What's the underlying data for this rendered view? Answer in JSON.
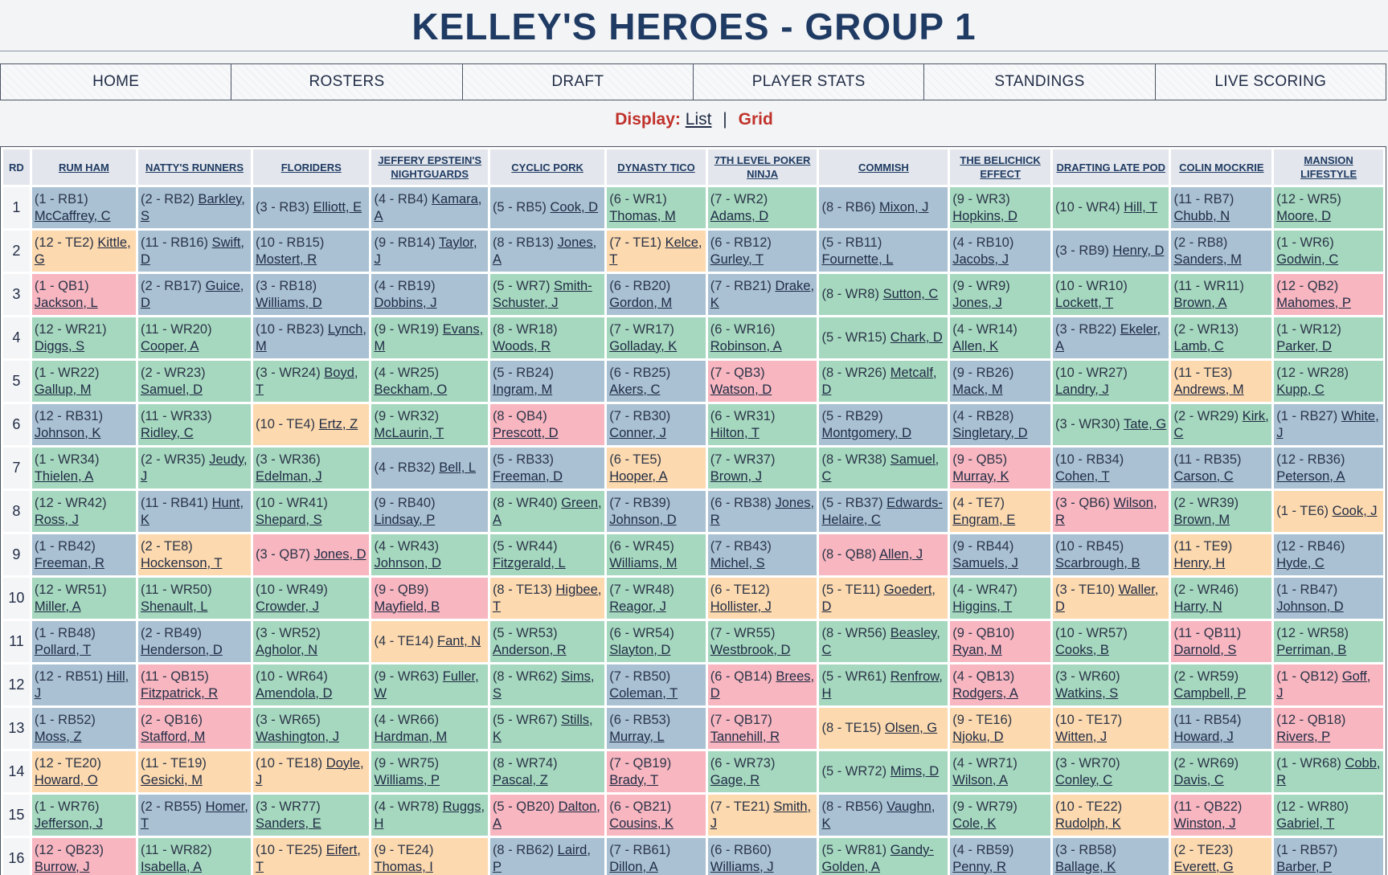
{
  "site": {
    "title": "KELLEY'S HEROES - GROUP 1"
  },
  "nav": [
    "HOME",
    "ROSTERS",
    "DRAFT",
    "PLAYER STATS",
    "STANDINGS",
    "LIVE SCORING"
  ],
  "display": {
    "label": "Display:",
    "list": "List",
    "separator": "|",
    "grid": "Grid"
  },
  "colors": {
    "RB": "#a9c1d3",
    "WR": "#a6d8bf",
    "TE": "#fcd9ae",
    "QB": "#f7b6c0"
  },
  "grid": {
    "rd_header": "RD",
    "teams": [
      "RUM HAM",
      "NATTY'S RUNNERS",
      "FLORIDERS",
      "JEFFERY EPSTEIN'S NIGHTGUARDS",
      "CYCLIC PORK",
      "DYNASTY TICO",
      "7TH LEVEL POKER NINJA",
      "COMMISH",
      "THE BELICHICK EFFECT",
      "DRAFTING LATE POD",
      "COLIN MOCKRIE",
      "MANSION LIFESTYLE"
    ],
    "rows": [
      {
        "rd": "1",
        "picks": [
          {
            "pick": "(1 - RB1)",
            "player": "McCaffrey, C"
          },
          {
            "pick": "(2 - RB2)",
            "player": "Barkley, S"
          },
          {
            "pick": "(3 - RB3)",
            "player": "Elliott, E"
          },
          {
            "pick": "(4 - RB4)",
            "player": "Kamara, A"
          },
          {
            "pick": "(5 - RB5)",
            "player": "Cook, D"
          },
          {
            "pick": "(6 - WR1)",
            "player": "Thomas, M"
          },
          {
            "pick": "(7 - WR2)",
            "player": "Adams, D"
          },
          {
            "pick": "(8 - RB6)",
            "player": "Mixon, J"
          },
          {
            "pick": "(9 - WR3)",
            "player": "Hopkins, D"
          },
          {
            "pick": "(10 - WR4)",
            "player": "Hill, T"
          },
          {
            "pick": "(11 - RB7)",
            "player": "Chubb, N"
          },
          {
            "pick": "(12 - WR5)",
            "player": "Moore, D"
          }
        ]
      },
      {
        "rd": "2",
        "picks": [
          {
            "pick": "(12 - TE2)",
            "player": "Kittle, G"
          },
          {
            "pick": "(11 - RB16)",
            "player": "Swift, D"
          },
          {
            "pick": "(10 - RB15)",
            "player": "Mostert, R"
          },
          {
            "pick": "(9 - RB14)",
            "player": "Taylor, J"
          },
          {
            "pick": "(8 - RB13)",
            "player": "Jones, A"
          },
          {
            "pick": "(7 - TE1)",
            "player": "Kelce, T"
          },
          {
            "pick": "(6 - RB12)",
            "player": "Gurley, T"
          },
          {
            "pick": "(5 - RB11)",
            "player": "Fournette, L"
          },
          {
            "pick": "(4 - RB10)",
            "player": "Jacobs, J"
          },
          {
            "pick": "(3 - RB9)",
            "player": "Henry, D"
          },
          {
            "pick": "(2 - RB8)",
            "player": "Sanders, M"
          },
          {
            "pick": "(1 - WR6)",
            "player": "Godwin, C"
          }
        ]
      },
      {
        "rd": "3",
        "picks": [
          {
            "pick": "(1 - QB1)",
            "player": "Jackson, L"
          },
          {
            "pick": "(2 - RB17)",
            "player": "Guice, D"
          },
          {
            "pick": "(3 - RB18)",
            "player": "Williams, D"
          },
          {
            "pick": "(4 - RB19)",
            "player": "Dobbins, J"
          },
          {
            "pick": "(5 - WR7)",
            "player": "Smith-Schuster, J"
          },
          {
            "pick": "(6 - RB20)",
            "player": "Gordon, M"
          },
          {
            "pick": "(7 - RB21)",
            "player": "Drake, K"
          },
          {
            "pick": "(8 - WR8)",
            "player": "Sutton, C"
          },
          {
            "pick": "(9 - WR9)",
            "player": "Jones, J"
          },
          {
            "pick": "(10 - WR10)",
            "player": "Lockett, T"
          },
          {
            "pick": "(11 - WR11)",
            "player": "Brown, A"
          },
          {
            "pick": "(12 - QB2)",
            "player": "Mahomes, P"
          }
        ]
      },
      {
        "rd": "4",
        "picks": [
          {
            "pick": "(12 - WR21)",
            "player": "Diggs, S"
          },
          {
            "pick": "(11 - WR20)",
            "player": "Cooper, A"
          },
          {
            "pick": "(10 - RB23)",
            "player": "Lynch, M"
          },
          {
            "pick": "(9 - WR19)",
            "player": "Evans, M"
          },
          {
            "pick": "(8 - WR18)",
            "player": "Woods, R"
          },
          {
            "pick": "(7 - WR17)",
            "player": "Golladay, K"
          },
          {
            "pick": "(6 - WR16)",
            "player": "Robinson, A"
          },
          {
            "pick": "(5 - WR15)",
            "player": "Chark, D"
          },
          {
            "pick": "(4 - WR14)",
            "player": "Allen, K"
          },
          {
            "pick": "(3 - RB22)",
            "player": "Ekeler, A"
          },
          {
            "pick": "(2 - WR13)",
            "player": "Lamb, C"
          },
          {
            "pick": "(1 - WR12)",
            "player": "Parker, D"
          }
        ]
      },
      {
        "rd": "5",
        "picks": [
          {
            "pick": "(1 - WR22)",
            "player": "Gallup, M"
          },
          {
            "pick": "(2 - WR23)",
            "player": "Samuel, D"
          },
          {
            "pick": "(3 - WR24)",
            "player": "Boyd, T"
          },
          {
            "pick": "(4 - WR25)",
            "player": "Beckham, O"
          },
          {
            "pick": "(5 - RB24)",
            "player": "Ingram, M"
          },
          {
            "pick": "(6 - RB25)",
            "player": "Akers, C"
          },
          {
            "pick": "(7 - QB3)",
            "player": "Watson, D"
          },
          {
            "pick": "(8 - WR26)",
            "player": "Metcalf, D"
          },
          {
            "pick": "(9 - RB26)",
            "player": "Mack, M"
          },
          {
            "pick": "(10 - WR27)",
            "player": "Landry, J"
          },
          {
            "pick": "(11 - TE3)",
            "player": "Andrews, M"
          },
          {
            "pick": "(12 - WR28)",
            "player": "Kupp, C"
          }
        ]
      },
      {
        "rd": "6",
        "picks": [
          {
            "pick": "(12 - RB31)",
            "player": "Johnson, K"
          },
          {
            "pick": "(11 - WR33)",
            "player": "Ridley, C"
          },
          {
            "pick": "(10 - TE4)",
            "player": "Ertz, Z"
          },
          {
            "pick": "(9 - WR32)",
            "player": "McLaurin, T"
          },
          {
            "pick": "(8 - QB4)",
            "player": "Prescott, D"
          },
          {
            "pick": "(7 - RB30)",
            "player": "Conner, J"
          },
          {
            "pick": "(6 - WR31)",
            "player": "Hilton, T"
          },
          {
            "pick": "(5 - RB29)",
            "player": "Montgomery, D"
          },
          {
            "pick": "(4 - RB28)",
            "player": "Singletary, D"
          },
          {
            "pick": "(3 - WR30)",
            "player": "Tate, G"
          },
          {
            "pick": "(2 - WR29)",
            "player": "Kirk, C"
          },
          {
            "pick": "(1 - RB27)",
            "player": "White, J"
          }
        ]
      },
      {
        "rd": "7",
        "picks": [
          {
            "pick": "(1 - WR34)",
            "player": "Thielen, A"
          },
          {
            "pick": "(2 - WR35)",
            "player": "Jeudy, J"
          },
          {
            "pick": "(3 - WR36)",
            "player": "Edelman, J"
          },
          {
            "pick": "(4 - RB32)",
            "player": "Bell, L"
          },
          {
            "pick": "(5 - RB33)",
            "player": "Freeman, D"
          },
          {
            "pick": "(6 - TE5)",
            "player": "Hooper, A"
          },
          {
            "pick": "(7 - WR37)",
            "player": "Brown, J"
          },
          {
            "pick": "(8 - WR38)",
            "player": "Samuel, C"
          },
          {
            "pick": "(9 - QB5)",
            "player": "Murray, K"
          },
          {
            "pick": "(10 - RB34)",
            "player": "Cohen, T"
          },
          {
            "pick": "(11 - RB35)",
            "player": "Carson, C"
          },
          {
            "pick": "(12 - RB36)",
            "player": "Peterson, A"
          }
        ]
      },
      {
        "rd": "8",
        "picks": [
          {
            "pick": "(12 - WR42)",
            "player": "Ross, J"
          },
          {
            "pick": "(11 - RB41)",
            "player": "Hunt, K"
          },
          {
            "pick": "(10 - WR41)",
            "player": "Shepard, S"
          },
          {
            "pick": "(9 - RB40)",
            "player": "Lindsay, P"
          },
          {
            "pick": "(8 - WR40)",
            "player": "Green, A"
          },
          {
            "pick": "(7 - RB39)",
            "player": "Johnson, D"
          },
          {
            "pick": "(6 - RB38)",
            "player": "Jones, R"
          },
          {
            "pick": "(5 - RB37)",
            "player": "Edwards-Helaire, C"
          },
          {
            "pick": "(4 - TE7)",
            "player": "Engram, E"
          },
          {
            "pick": "(3 - QB6)",
            "player": "Wilson, R"
          },
          {
            "pick": "(2 - WR39)",
            "player": "Brown, M"
          },
          {
            "pick": "(1 - TE6)",
            "player": "Cook, J"
          }
        ]
      },
      {
        "rd": "9",
        "picks": [
          {
            "pick": "(1 - RB42)",
            "player": "Freeman, R"
          },
          {
            "pick": "(2 - TE8)",
            "player": "Hockenson, T"
          },
          {
            "pick": "(3 - QB7)",
            "player": "Jones, D"
          },
          {
            "pick": "(4 - WR43)",
            "player": "Johnson, D"
          },
          {
            "pick": "(5 - WR44)",
            "player": "Fitzgerald, L"
          },
          {
            "pick": "(6 - WR45)",
            "player": "Williams, M"
          },
          {
            "pick": "(7 - RB43)",
            "player": "Michel, S"
          },
          {
            "pick": "(8 - QB8)",
            "player": "Allen, J"
          },
          {
            "pick": "(9 - RB44)",
            "player": "Samuels, J"
          },
          {
            "pick": "(10 - RB45)",
            "player": "Scarbrough, B"
          },
          {
            "pick": "(11 - TE9)",
            "player": "Henry, H"
          },
          {
            "pick": "(12 - RB46)",
            "player": "Hyde, C"
          }
        ]
      },
      {
        "rd": "10",
        "picks": [
          {
            "pick": "(12 - WR51)",
            "player": "Miller, A"
          },
          {
            "pick": "(11 - WR50)",
            "player": "Shenault, L"
          },
          {
            "pick": "(10 - WR49)",
            "player": "Crowder, J"
          },
          {
            "pick": "(9 - QB9)",
            "player": "Mayfield, B"
          },
          {
            "pick": "(8 - TE13)",
            "player": "Higbee, T"
          },
          {
            "pick": "(7 - WR48)",
            "player": "Reagor, J"
          },
          {
            "pick": "(6 - TE12)",
            "player": "Hollister, J"
          },
          {
            "pick": "(5 - TE11)",
            "player": "Goedert, D"
          },
          {
            "pick": "(4 - WR47)",
            "player": "Higgins, T"
          },
          {
            "pick": "(3 - TE10)",
            "player": "Waller, D"
          },
          {
            "pick": "(2 - WR46)",
            "player": "Harry, N"
          },
          {
            "pick": "(1 - RB47)",
            "player": "Johnson, D"
          }
        ]
      },
      {
        "rd": "11",
        "picks": [
          {
            "pick": "(1 - RB48)",
            "player": "Pollard, T"
          },
          {
            "pick": "(2 - RB49)",
            "player": "Henderson, D"
          },
          {
            "pick": "(3 - WR52)",
            "player": "Agholor, N"
          },
          {
            "pick": "(4 - TE14)",
            "player": "Fant, N"
          },
          {
            "pick": "(5 - WR53)",
            "player": "Anderson, R"
          },
          {
            "pick": "(6 - WR54)",
            "player": "Slayton, D"
          },
          {
            "pick": "(7 - WR55)",
            "player": "Westbrook, D"
          },
          {
            "pick": "(8 - WR56)",
            "player": "Beasley, C"
          },
          {
            "pick": "(9 - QB10)",
            "player": "Ryan, M"
          },
          {
            "pick": "(10 - WR57)",
            "player": "Cooks, B"
          },
          {
            "pick": "(11 - QB11)",
            "player": "Darnold, S"
          },
          {
            "pick": "(12 - WR58)",
            "player": "Perriman, B"
          }
        ]
      },
      {
        "rd": "12",
        "picks": [
          {
            "pick": "(12 - RB51)",
            "player": "Hill, J"
          },
          {
            "pick": "(11 - QB15)",
            "player": "Fitzpatrick, R"
          },
          {
            "pick": "(10 - WR64)",
            "player": "Amendola, D"
          },
          {
            "pick": "(9 - WR63)",
            "player": "Fuller, W"
          },
          {
            "pick": "(8 - WR62)",
            "player": "Sims, S"
          },
          {
            "pick": "(7 - RB50)",
            "player": "Coleman, T"
          },
          {
            "pick": "(6 - QB14)",
            "player": "Brees, D"
          },
          {
            "pick": "(5 - WR61)",
            "player": "Renfrow, H"
          },
          {
            "pick": "(4 - QB13)",
            "player": "Rodgers, A"
          },
          {
            "pick": "(3 - WR60)",
            "player": "Watkins, S"
          },
          {
            "pick": "(2 - WR59)",
            "player": "Campbell, P"
          },
          {
            "pick": "(1 - QB12)",
            "player": "Goff, J"
          }
        ]
      },
      {
        "rd": "13",
        "picks": [
          {
            "pick": "(1 - RB52)",
            "player": "Moss, Z"
          },
          {
            "pick": "(2 - QB16)",
            "player": "Stafford, M"
          },
          {
            "pick": "(3 - WR65)",
            "player": "Washington, J"
          },
          {
            "pick": "(4 - WR66)",
            "player": "Hardman, M"
          },
          {
            "pick": "(5 - WR67)",
            "player": "Stills, K"
          },
          {
            "pick": "(6 - RB53)",
            "player": "Murray, L"
          },
          {
            "pick": "(7 - QB17)",
            "player": "Tannehill, R"
          },
          {
            "pick": "(8 - TE15)",
            "player": "Olsen, G"
          },
          {
            "pick": "(9 - TE16)",
            "player": "Njoku, D"
          },
          {
            "pick": "(10 - TE17)",
            "player": "Witten, J"
          },
          {
            "pick": "(11 - RB54)",
            "player": "Howard, J"
          },
          {
            "pick": "(12 - QB18)",
            "player": "Rivers, P"
          }
        ]
      },
      {
        "rd": "14",
        "picks": [
          {
            "pick": "(12 - TE20)",
            "player": "Howard, O"
          },
          {
            "pick": "(11 - TE19)",
            "player": "Gesicki, M"
          },
          {
            "pick": "(10 - TE18)",
            "player": "Doyle, J"
          },
          {
            "pick": "(9 - WR75)",
            "player": "Williams, P"
          },
          {
            "pick": "(8 - WR74)",
            "player": "Pascal, Z"
          },
          {
            "pick": "(7 - QB19)",
            "player": "Brady, T"
          },
          {
            "pick": "(6 - WR73)",
            "player": "Gage, R"
          },
          {
            "pick": "(5 - WR72)",
            "player": "Mims, D"
          },
          {
            "pick": "(4 - WR71)",
            "player": "Wilson, A"
          },
          {
            "pick": "(3 - WR70)",
            "player": "Conley, C"
          },
          {
            "pick": "(2 - WR69)",
            "player": "Davis, C"
          },
          {
            "pick": "(1 - WR68)",
            "player": "Cobb, R"
          }
        ]
      },
      {
        "rd": "15",
        "picks": [
          {
            "pick": "(1 - WR76)",
            "player": "Jefferson, J"
          },
          {
            "pick": "(2 - RB55)",
            "player": "Homer, T"
          },
          {
            "pick": "(3 - WR77)",
            "player": "Sanders, E"
          },
          {
            "pick": "(4 - WR78)",
            "player": "Ruggs, H"
          },
          {
            "pick": "(5 - QB20)",
            "player": "Dalton, A"
          },
          {
            "pick": "(6 - QB21)",
            "player": "Cousins, K"
          },
          {
            "pick": "(7 - TE21)",
            "player": "Smith, J"
          },
          {
            "pick": "(8 - RB56)",
            "player": "Vaughn, K"
          },
          {
            "pick": "(9 - WR79)",
            "player": "Cole, K"
          },
          {
            "pick": "(10 - TE22)",
            "player": "Rudolph, K"
          },
          {
            "pick": "(11 - QB22)",
            "player": "Winston, J"
          },
          {
            "pick": "(12 - WR80)",
            "player": "Gabriel, T"
          }
        ]
      },
      {
        "rd": "16",
        "picks": [
          {
            "pick": "(12 - QB23)",
            "player": "Burrow, J"
          },
          {
            "pick": "(11 - WR82)",
            "player": "Isabella, A"
          },
          {
            "pick": "(10 - TE25)",
            "player": "Eifert, T"
          },
          {
            "pick": "(9 - TE24)",
            "player": "Thomas, I"
          },
          {
            "pick": "(8 - RB62)",
            "player": "Laird, P"
          },
          {
            "pick": "(7 - RB61)",
            "player": "Dillon, A"
          },
          {
            "pick": "(6 - RB60)",
            "player": "Williams, J"
          },
          {
            "pick": "(5 - WR81)",
            "player": "Gandy-Golden, A"
          },
          {
            "pick": "(4 - RB59)",
            "player": "Penny, R"
          },
          {
            "pick": "(3 - RB58)",
            "player": "Ballage, K"
          },
          {
            "pick": "(2 - TE23)",
            "player": "Everett, G"
          },
          {
            "pick": "(1 - RB57)",
            "player": "Barber, P"
          }
        ]
      }
    ]
  }
}
